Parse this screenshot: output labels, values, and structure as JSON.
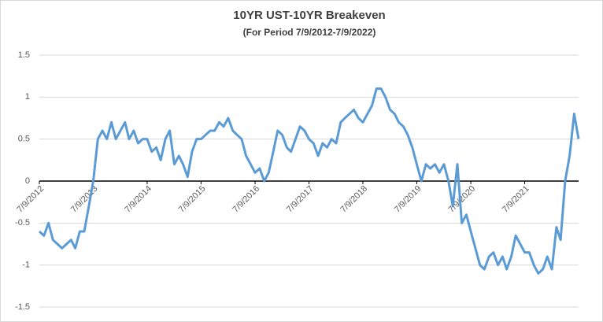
{
  "chart_data": {
    "type": "line",
    "title": "10YR UST-10YR Breakeven",
    "subtitle": "(For Period 7/9/2012-7/9/2022)",
    "x": [
      "7/9/2012",
      "8/9/2012",
      "9/9/2012",
      "10/9/2012",
      "11/9/2012",
      "12/9/2012",
      "1/9/2013",
      "2/9/2013",
      "3/9/2013",
      "4/9/2013",
      "5/9/2013",
      "6/9/2013",
      "7/9/2013",
      "8/9/2013",
      "9/9/2013",
      "10/9/2013",
      "11/9/2013",
      "12/9/2013",
      "1/9/2014",
      "2/9/2014",
      "3/9/2014",
      "4/9/2014",
      "5/9/2014",
      "6/9/2014",
      "7/9/2014",
      "8/9/2014",
      "9/9/2014",
      "10/9/2014",
      "11/9/2014",
      "12/9/2014",
      "1/9/2015",
      "2/9/2015",
      "3/9/2015",
      "4/9/2015",
      "5/9/2015",
      "6/9/2015",
      "7/9/2015",
      "8/9/2015",
      "9/9/2015",
      "10/9/2015",
      "11/9/2015",
      "12/9/2015",
      "1/9/2016",
      "2/9/2016",
      "3/9/2016",
      "4/9/2016",
      "5/9/2016",
      "6/9/2016",
      "7/9/2016",
      "8/9/2016",
      "9/9/2016",
      "10/9/2016",
      "11/9/2016",
      "12/9/2016",
      "1/9/2017",
      "2/9/2017",
      "3/9/2017",
      "4/9/2017",
      "5/9/2017",
      "6/9/2017",
      "7/9/2017",
      "8/9/2017",
      "9/9/2017",
      "10/9/2017",
      "11/9/2017",
      "12/9/2017",
      "1/9/2018",
      "2/9/2018",
      "3/9/2018",
      "4/9/2018",
      "5/9/2018",
      "6/9/2018",
      "7/9/2018",
      "8/9/2018",
      "9/9/2018",
      "10/9/2018",
      "11/9/2018",
      "12/9/2018",
      "1/9/2019",
      "2/9/2019",
      "3/9/2019",
      "4/9/2019",
      "5/9/2019",
      "6/9/2019",
      "7/9/2019",
      "8/9/2019",
      "9/9/2019",
      "10/9/2019",
      "11/9/2019",
      "12/9/2019",
      "1/9/2020",
      "2/9/2020",
      "3/9/2020",
      "4/9/2020",
      "5/9/2020",
      "6/9/2020",
      "7/9/2020",
      "8/9/2020",
      "9/9/2020",
      "10/9/2020",
      "11/9/2020",
      "12/9/2020",
      "1/9/2021",
      "2/9/2021",
      "3/9/2021",
      "4/9/2021",
      "5/9/2021",
      "6/9/2021",
      "7/9/2021",
      "8/9/2021",
      "9/9/2021",
      "10/9/2021",
      "11/9/2021",
      "12/9/2021",
      "1/9/2022",
      "2/9/2022",
      "3/9/2022",
      "4/9/2022",
      "5/9/2022",
      "6/9/2022",
      "7/9/2022"
    ],
    "series": [
      {
        "color": "#5b9bd5",
        "values": [
          -0.6,
          -0.65,
          -0.5,
          -0.7,
          -0.75,
          -0.8,
          -0.75,
          -0.7,
          -0.8,
          -0.6,
          -0.6,
          -0.3,
          0,
          0.5,
          0.6,
          0.5,
          0.7,
          0.5,
          0.6,
          0.7,
          0.5,
          0.6,
          0.45,
          0.5,
          0.5,
          0.35,
          0.4,
          0.25,
          0.5,
          0.6,
          0.2,
          0.3,
          0.2,
          0.05,
          0.35,
          0.5,
          0.5,
          0.55,
          0.6,
          0.6,
          0.7,
          0.65,
          0.75,
          0.6,
          0.55,
          0.5,
          0.3,
          0.2,
          0.1,
          0.15,
          0,
          0.1,
          0.35,
          0.6,
          0.55,
          0.4,
          0.35,
          0.5,
          0.65,
          0.6,
          0.5,
          0.45,
          0.3,
          0.45,
          0.4,
          0.5,
          0.45,
          0.7,
          0.75,
          0.8,
          0.85,
          0.75,
          0.7,
          0.8,
          0.9,
          1.1,
          1.1,
          1.0,
          0.85,
          0.8,
          0.7,
          0.65,
          0.55,
          0.4,
          0.2,
          0,
          0.2,
          0.15,
          0.2,
          0.1,
          0.2,
          0,
          -0.3,
          0.2,
          -0.5,
          -0.4,
          -0.6,
          -0.8,
          -1,
          -1.05,
          -0.9,
          -0.85,
          -1,
          -0.9,
          -1.05,
          -0.9,
          -0.65,
          -0.75,
          -0.85,
          -0.85,
          -1,
          -1.1,
          -1.05,
          -0.9,
          -1.05,
          -0.55,
          -0.7,
          0,
          0.3,
          0.8,
          0.5
        ]
      }
    ],
    "xlim": [
      "7/9/2012",
      "7/9/2022"
    ],
    "xticks": [
      "7/9/2012",
      "7/9/2013",
      "7/9/2014",
      "7/9/2015",
      "7/9/2016",
      "7/9/2017",
      "7/9/2018",
      "7/9/2019",
      "7/9/2020",
      "7/9/2021"
    ],
    "ylim": [
      -1.5,
      1.5
    ],
    "yticks": [
      1.5,
      1,
      0.5,
      0,
      -0.5,
      -1,
      -1.5
    ],
    "grid": true
  }
}
